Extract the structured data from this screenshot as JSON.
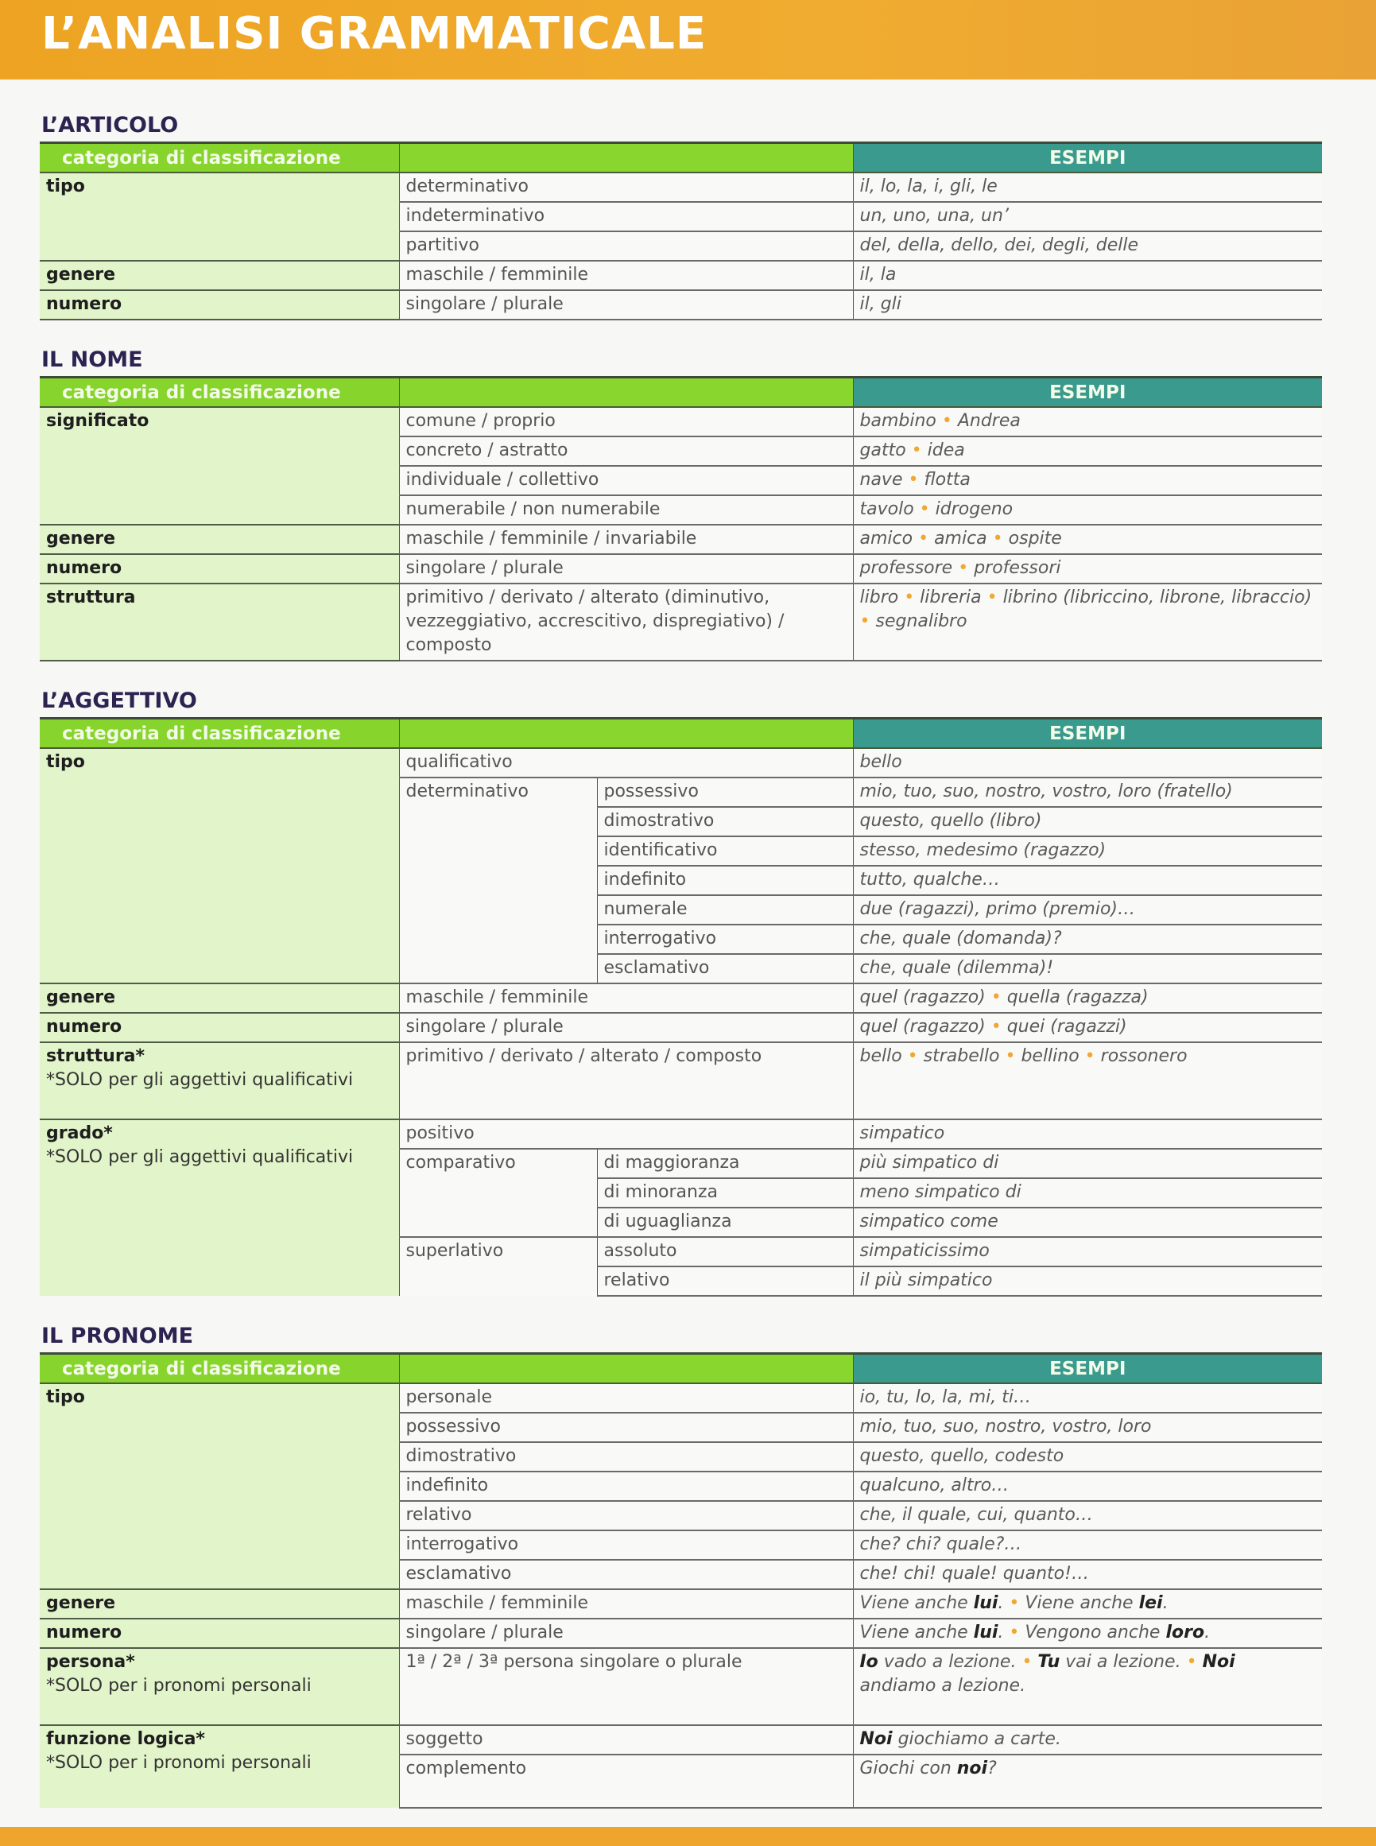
{
  "page_title": "L’ANALISI GRAMMATICALE",
  "colors": {
    "band": "#f0a830",
    "header_green": "#86d42c",
    "header_teal": "#3a9a8e",
    "category_bg": "#e2f4c9",
    "bullet": "#f0a830",
    "section_title": "#2c2350"
  },
  "sections": [
    {
      "title": "L’ARTICOLO",
      "header": {
        "category": "categoria di classificazione",
        "examples": "ESEMPI"
      },
      "rows": [
        {
          "cat": "tipo",
          "items": [
            {
              "a": "determinativo",
              "ex": [
                "il, lo, la, i, gli, le"
              ]
            },
            {
              "a": "indeterminativo",
              "ex": [
                "un, uno, una, un’"
              ]
            },
            {
              "a": "partitivo",
              "ex": [
                "del, della, dello, dei, degli, delle"
              ]
            }
          ]
        },
        {
          "cat": "genere",
          "items": [
            {
              "a": "maschile / femminile",
              "ex": [
                "il, la"
              ]
            }
          ]
        },
        {
          "cat": "numero",
          "items": [
            {
              "a": "singolare / plurale",
              "ex": [
                "il, gli"
              ]
            }
          ]
        }
      ]
    },
    {
      "title": "IL NOME",
      "header": {
        "category": "categoria di classificazione",
        "examples": "ESEMPI"
      },
      "rows": [
        {
          "cat": "significato",
          "items": [
            {
              "a": "comune / proprio",
              "ex": [
                "bambino",
                "Andrea"
              ]
            },
            {
              "a": "concreto / astratto",
              "ex": [
                "gatto",
                "idea"
              ]
            },
            {
              "a": "individuale / collettivo",
              "ex": [
                "nave",
                "flotta"
              ]
            },
            {
              "a": "numerabile / non numerabile",
              "ex": [
                "tavolo",
                "idrogeno"
              ]
            }
          ]
        },
        {
          "cat": "genere",
          "items": [
            {
              "a": "maschile / femminile / invariabile",
              "ex": [
                "amico",
                "amica",
                "ospite"
              ]
            }
          ]
        },
        {
          "cat": "numero",
          "items": [
            {
              "a": "singolare / plurale",
              "ex": [
                "professore",
                "professori"
              ]
            }
          ]
        },
        {
          "cat": "struttura",
          "items": [
            {
              "a": "primitivo / derivato / alterato (diminutivo, vezzeggiativo, accrescitivo, dispregiativo) / composto",
              "ex": [
                "libro",
                "libreria",
                "librino (libriccino, librone, libraccio)",
                "segnalibro"
              ]
            }
          ]
        }
      ]
    },
    {
      "title": "L’AGGETTIVO",
      "header": {
        "category": "categoria di classificazione",
        "examples": "ESEMPI"
      },
      "rows": [
        {
          "cat": "tipo",
          "items": [
            {
              "a": "qualificativo",
              "ex": [
                "bello"
              ]
            },
            {
              "a": "determinativo",
              "subs": [
                {
                  "b": "possessivo",
                  "ex": [
                    "mio, tuo, suo, nostro, vostro, loro (fratello)"
                  ]
                },
                {
                  "b": "dimostrativo",
                  "ex": [
                    "questo, quello (libro)"
                  ]
                },
                {
                  "b": "identificativo",
                  "ex": [
                    "stesso, medesimo (ragazzo)"
                  ]
                },
                {
                  "b": "indefinito",
                  "ex": [
                    "tutto, qualche…"
                  ]
                },
                {
                  "b": "numerale",
                  "ex": [
                    "due (ragazzi), primo (premio)…"
                  ]
                },
                {
                  "b": "interrogativo",
                  "ex": [
                    "che, quale (domanda)?"
                  ]
                },
                {
                  "b": "esclamativo",
                  "ex": [
                    "che, quale (dilemma)!"
                  ]
                }
              ]
            }
          ]
        },
        {
          "cat": "genere",
          "items": [
            {
              "a": "maschile / femminile",
              "ex": [
                "quel (ragazzo)",
                "quella (ragazza)"
              ]
            }
          ]
        },
        {
          "cat": "numero",
          "items": [
            {
              "a": "singolare / plurale",
              "ex": [
                "quel (ragazzo)",
                "quei (ragazzi)"
              ]
            }
          ]
        },
        {
          "cat": "struttura*",
          "note": "*SOLO per gli aggettivi qualificativi",
          "items": [
            {
              "a": "primitivo / derivato / alterato / composto",
              "ex": [
                "bello",
                "strabello",
                "bellino",
                "rossonero"
              ],
              "tall": true
            }
          ]
        },
        {
          "cat": "grado*",
          "note": "*SOLO per gli aggettivi qualificativi",
          "items": [
            {
              "a": "positivo",
              "ex": [
                "simpatico"
              ]
            },
            {
              "a": "comparativo",
              "subs": [
                {
                  "b": "di maggioranza",
                  "ex": [
                    "più simpatico di"
                  ]
                },
                {
                  "b": "di minoranza",
                  "ex": [
                    "meno simpatico di"
                  ]
                },
                {
                  "b": "di uguaglianza",
                  "ex": [
                    "simpatico come"
                  ]
                }
              ]
            },
            {
              "a": "superlativo",
              "subs": [
                {
                  "b": "assoluto",
                  "ex": [
                    "simpaticissimo"
                  ]
                },
                {
                  "b": "relativo",
                  "ex": [
                    "il più simpatico"
                  ]
                }
              ]
            }
          ]
        }
      ]
    },
    {
      "title": "IL PRONOME",
      "header": {
        "category": "categoria di classificazione",
        "examples": "ESEMPI"
      },
      "rows": [
        {
          "cat": "tipo",
          "items": [
            {
              "a": "personale",
              "ex": [
                "io, tu, lo, la, mi, ti…"
              ]
            },
            {
              "a": "possessivo",
              "ex": [
                "mio, tuo, suo, nostro, vostro, loro"
              ]
            },
            {
              "a": "dimostrativo",
              "ex": [
                "questo, quello, codesto"
              ]
            },
            {
              "a": "indefinito",
              "ex": [
                "qualcuno, altro…"
              ]
            },
            {
              "a": "relativo",
              "ex": [
                "che, il quale, cui, quanto…"
              ]
            },
            {
              "a": "interrogativo",
              "ex": [
                "che? chi? quale?…"
              ]
            },
            {
              "a": "esclamativo",
              "ex": [
                "che! chi! quale! quanto!…"
              ]
            }
          ]
        },
        {
          "cat": "genere",
          "items": [
            {
              "a": "maschile / femminile",
              "ex": [
                [
                  "Viene anche ",
                  {
                    "b": "lui"
                  },
                  "."
                ],
                [
                  "Viene anche ",
                  {
                    "b": "lei"
                  },
                  "."
                ]
              ]
            }
          ]
        },
        {
          "cat": "numero",
          "items": [
            {
              "a": "singolare / plurale",
              "ex": [
                [
                  "Viene anche ",
                  {
                    "b": "lui"
                  },
                  "."
                ],
                [
                  "Vengono anche ",
                  {
                    "b": "loro"
                  },
                  "."
                ]
              ]
            }
          ]
        },
        {
          "cat": "persona*",
          "note": "*SOLO per i pronomi personali",
          "items": [
            {
              "a": "1ª / 2ª / 3ª persona singolare o plurale",
              "ex": [
                [
                  {
                    "b": "Io"
                  },
                  " vado a lezione."
                ],
                [
                  {
                    "b": "Tu"
                  },
                  " vai a lezione."
                ],
                [
                  {
                    "b": "Noi"
                  },
                  " andiamo a lezione."
                ]
              ],
              "tall": true
            }
          ]
        },
        {
          "cat": "funzione logica*",
          "note": "*SOLO per i pronomi personali",
          "items": [
            {
              "a": "soggetto",
              "ex": [
                [
                  {
                    "b": "Noi"
                  },
                  " giochiamo a carte."
                ]
              ]
            },
            {
              "a": "complemento",
              "ex": [
                [
                  "Giochi con ",
                  {
                    "b": "noi"
                  },
                  "?"
                ]
              ],
              "tall2": true
            }
          ]
        }
      ]
    }
  ]
}
